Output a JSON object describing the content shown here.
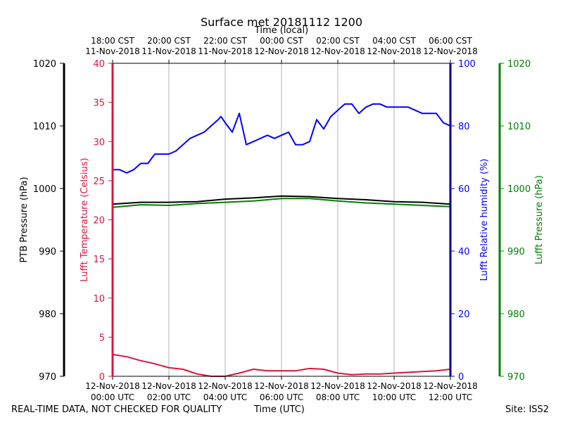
{
  "chart_data": {
    "type": "line",
    "title": "Surface met 20181112 1200",
    "top_axis_label": "Time (local)",
    "xlabel": "Time (UTC)",
    "x_ticks_utc": [
      {
        "date": "12-Nov-2018",
        "time": "00:00 UTC"
      },
      {
        "date": "12-Nov-2018",
        "time": "02:00 UTC"
      },
      {
        "date": "12-Nov-2018",
        "time": "04:00 UTC"
      },
      {
        "date": "12-Nov-2018",
        "time": "06:00 UTC"
      },
      {
        "date": "12-Nov-2018",
        "time": "08:00 UTC"
      },
      {
        "date": "12-Nov-2018",
        "time": "10:00 UTC"
      },
      {
        "date": "12-Nov-2018",
        "time": "12:00 UTC"
      }
    ],
    "x_ticks_local": [
      {
        "time": "18:00 CST",
        "date": "11-Nov-2018"
      },
      {
        "time": "20:00 CST",
        "date": "11-Nov-2018"
      },
      {
        "time": "22:00 CST",
        "date": "11-Nov-2018"
      },
      {
        "time": "00:00 CST",
        "date": "12-Nov-2018"
      },
      {
        "time": "02:00 CST",
        "date": "12-Nov-2018"
      },
      {
        "time": "04:00 CST",
        "date": "12-Nov-2018"
      },
      {
        "time": "06:00 CST",
        "date": "12-Nov-2018"
      }
    ],
    "x_range_hours": [
      0,
      12
    ],
    "axes": {
      "ptb_pressure": {
        "label": "PTB Pressure (hPa)",
        "range": [
          970,
          1020
        ],
        "ticks": [
          "970",
          "980",
          "990",
          "1000",
          "1010",
          "1020"
        ],
        "color": "#000000"
      },
      "temperature": {
        "label": "Lufft Temperature (Celsius)",
        "range": [
          0,
          40
        ],
        "ticks": [
          "0",
          "5",
          "10",
          "15",
          "20",
          "25",
          "30",
          "35",
          "40"
        ],
        "color": "#dc143c"
      },
      "humidity": {
        "label": "Lufft Relative humidity (%)",
        "range": [
          0,
          100
        ],
        "ticks": [
          "0",
          "20",
          "40",
          "60",
          "80",
          "100"
        ],
        "color": "#0000ff"
      },
      "lufft_pressure": {
        "label": "Lufft Pressure (hPa)",
        "range": [
          970,
          1020
        ],
        "ticks": [
          "970",
          "980",
          "990",
          "1000",
          "1010",
          "1020"
        ],
        "color": "#008000"
      }
    },
    "series": [
      {
        "name": "Lufft Relative humidity",
        "axis": "humidity",
        "color": "#0000ff",
        "x": [
          0,
          0.25,
          0.5,
          0.75,
          1,
          1.25,
          1.5,
          1.75,
          2,
          2.25,
          2.5,
          2.75,
          3,
          3.25,
          3.5,
          3.75,
          3.85,
          4,
          4.25,
          4.5,
          4.75,
          5,
          5.25,
          5.5,
          5.75,
          6,
          6.25,
          6.5,
          6.75,
          7,
          7.25,
          7.5,
          7.75,
          8,
          8.25,
          8.5,
          8.75,
          9,
          9.25,
          9.5,
          9.75,
          10,
          10.25,
          10.5,
          10.75,
          11,
          11.25,
          11.5,
          11.75,
          12
        ],
        "y": [
          66,
          66,
          65,
          66,
          68,
          68,
          71,
          71,
          71,
          72,
          74,
          76,
          77,
          78,
          80,
          82,
          83,
          81,
          78,
          84,
          74,
          75,
          76,
          77,
          76,
          77,
          78,
          74,
          74,
          75,
          82,
          79,
          83,
          85,
          87,
          87,
          84,
          86,
          87,
          87,
          86,
          86,
          86,
          86,
          85,
          84,
          84,
          84,
          81,
          80
        ]
      },
      {
        "name": "PTB Pressure",
        "axis": "ptb_pressure",
        "color": "#000000",
        "x": [
          0,
          1,
          2,
          3,
          4,
          5,
          6,
          7,
          8,
          9,
          10,
          11,
          12
        ],
        "y": [
          997.5,
          997.8,
          997.8,
          997.9,
          998.3,
          998.5,
          998.8,
          998.7,
          998.4,
          998.2,
          997.9,
          997.8,
          997.5
        ]
      },
      {
        "name": "Lufft Pressure",
        "axis": "lufft_pressure",
        "color": "#008000",
        "x": [
          0,
          1,
          2,
          3,
          4,
          5,
          6,
          7,
          8,
          9,
          10,
          11,
          12
        ],
        "y": [
          997.0,
          997.4,
          997.3,
          997.6,
          997.8,
          998.0,
          998.4,
          998.4,
          998.0,
          997.7,
          997.5,
          997.3,
          997.1
        ]
      },
      {
        "name": "Lufft Temperature",
        "axis": "temperature",
        "color": "#dc143c",
        "x": [
          0,
          0.5,
          1,
          1.5,
          2,
          2.5,
          3,
          3.5,
          4,
          4.5,
          5,
          5.5,
          6,
          6.5,
          7,
          7.5,
          8,
          8.5,
          9,
          9.5,
          10,
          10.5,
          11,
          11.5,
          12
        ],
        "y": [
          2.8,
          2.5,
          2.0,
          1.6,
          1.1,
          0.9,
          0.3,
          0,
          0,
          0.4,
          0.9,
          0.7,
          0.7,
          0.7,
          1.0,
          0.9,
          0.4,
          0.2,
          0.3,
          0.3,
          0.4,
          0.5,
          0.6,
          0.7,
          0.9
        ]
      }
    ]
  },
  "footer": {
    "disclaimer": "REAL-TIME DATA, NOT CHECKED FOR QUALITY",
    "site": "Site: ISS2"
  }
}
